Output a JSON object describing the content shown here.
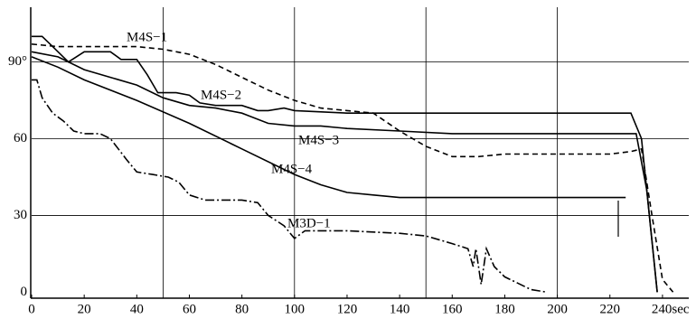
{
  "chart_data": {
    "type": "line",
    "series": [
      {
        "name": "M4S−1",
        "color": "#000000",
        "dash": "dashed",
        "x": [
          0,
          10,
          20,
          40,
          50,
          60,
          70,
          80,
          90,
          100,
          110,
          120,
          130,
          140,
          150,
          160,
          170,
          180,
          200,
          220,
          228,
          232,
          236,
          240,
          244
        ],
        "values": [
          97,
          96,
          96,
          96,
          95,
          93,
          89,
          84,
          79,
          75,
          72,
          71,
          70,
          63,
          57,
          53,
          53,
          54,
          54,
          54,
          55,
          56,
          30,
          5,
          0
        ]
      },
      {
        "name": "M4S−2",
        "color": "#000000",
        "dash": "solid",
        "x": [
          0,
          4,
          8,
          12,
          14,
          20,
          30,
          34,
          40,
          44,
          48,
          55,
          60,
          64,
          70,
          80,
          86,
          90,
          96,
          100,
          120,
          160,
          200,
          228,
          232,
          236,
          238
        ],
        "values": [
          100,
          100,
          96,
          92,
          90,
          94,
          94,
          91,
          91,
          85,
          78,
          78,
          77,
          74,
          73,
          73,
          71,
          71,
          72,
          71,
          70,
          70,
          70,
          70,
          60,
          20,
          0
        ]
      },
      {
        "name": "M4S−3",
        "color": "#000000",
        "dash": "solid",
        "x": [
          0,
          10,
          20,
          30,
          40,
          50,
          60,
          70,
          80,
          90,
          100,
          110,
          120,
          140,
          160,
          200,
          220,
          230,
          234,
          238
        ],
        "values": [
          94,
          92,
          87,
          84,
          81,
          76,
          73,
          72,
          70,
          66,
          65,
          65,
          64,
          63,
          62,
          62,
          62,
          62,
          40,
          0
        ]
      },
      {
        "name": "M4S−4",
        "color": "#000000",
        "dash": "solid",
        "x": [
          0,
          10,
          20,
          40,
          60,
          80,
          100,
          110,
          120,
          130,
          140,
          160,
          200,
          226
        ],
        "values": [
          92,
          88,
          83,
          75,
          66,
          56,
          46,
          42,
          39,
          38,
          37,
          37,
          37,
          37
        ]
      },
      {
        "name": "M3D−1",
        "color": "#000000",
        "dash": "dashdot",
        "x": [
          0,
          2,
          4,
          8,
          12,
          16,
          20,
          26,
          30,
          36,
          40,
          46,
          52,
          56,
          60,
          66,
          80,
          86,
          90,
          96,
          100,
          104,
          120,
          140,
          150,
          160,
          166,
          168,
          169,
          171,
          173,
          176,
          180,
          190,
          196
        ],
        "values": [
          83,
          83,
          76,
          70,
          67,
          63,
          62,
          62,
          60,
          52,
          47,
          46,
          45,
          43,
          38,
          36,
          36,
          35,
          30,
          26,
          21,
          24,
          24,
          23,
          22,
          19,
          17,
          10,
          17,
          3,
          17,
          10,
          6,
          1,
          0
        ]
      }
    ],
    "xlim": [
      0,
      250
    ],
    "ylim": [
      -2,
      110
    ],
    "xticks": [
      0,
      20,
      40,
      60,
      80,
      100,
      120,
      140,
      160,
      180,
      200,
      220,
      {
        "value": 240,
        "label": "240sec"
      }
    ],
    "yticks": [
      0,
      30,
      60,
      {
        "value": 90,
        "label": "90°"
      }
    ],
    "xgrid": [
      50,
      100,
      150,
      200
    ],
    "grid": true
  }
}
